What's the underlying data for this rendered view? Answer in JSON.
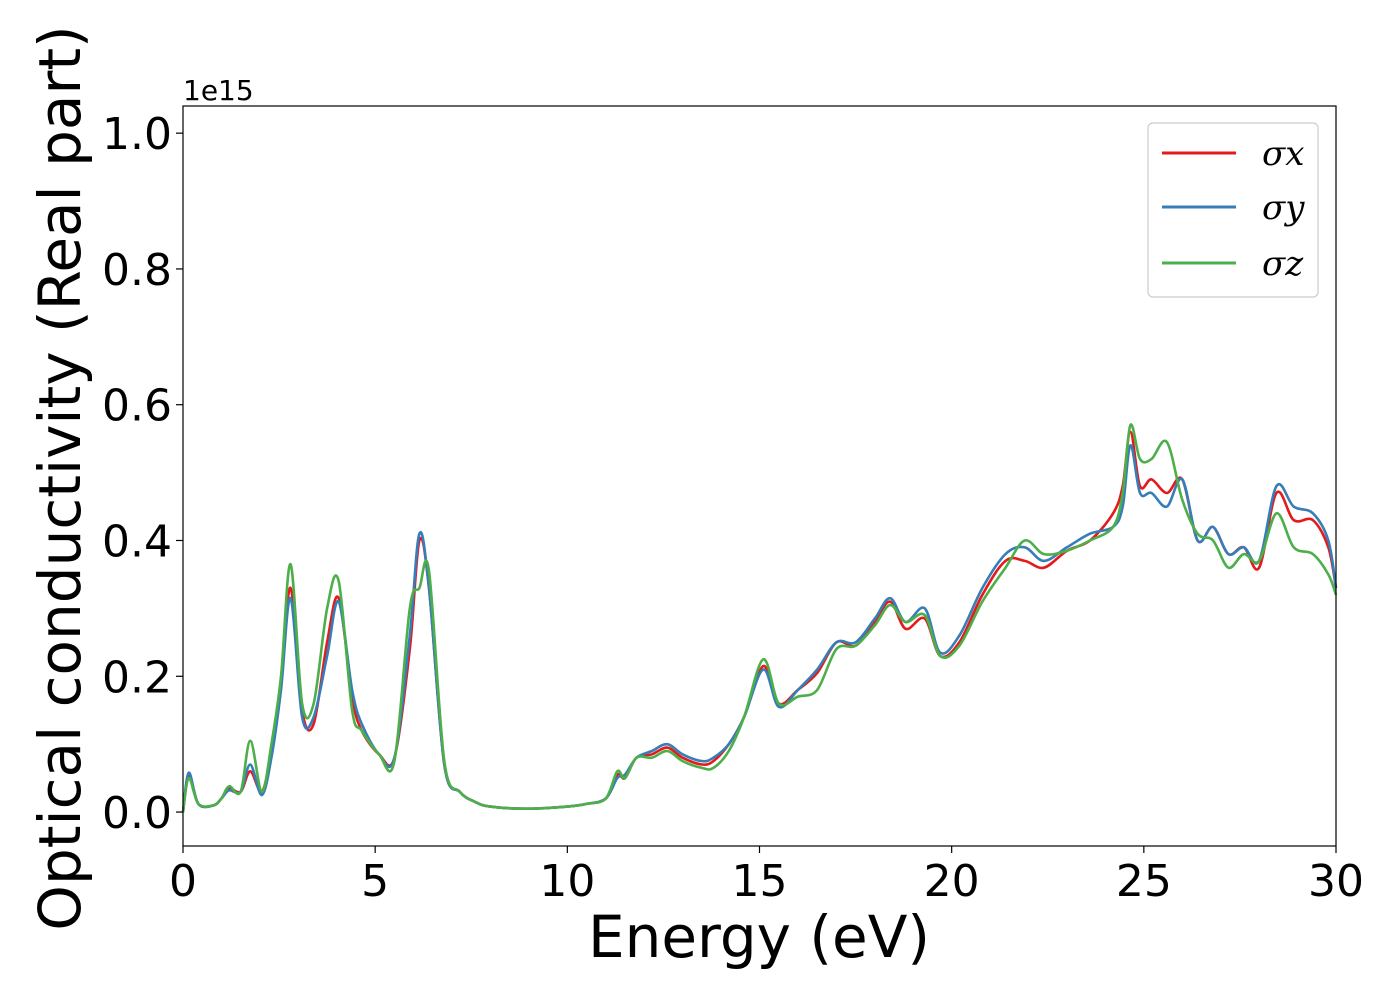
{
  "chart_data": {
    "type": "line",
    "xlabel": "Energy (eV)",
    "ylabel": "Optical conductivity (Real part)",
    "y_offset_label": "1e15",
    "xlim": [
      0,
      30
    ],
    "ylim": [
      -0.05,
      1.04
    ],
    "xticks": [
      0,
      5,
      10,
      15,
      20,
      25,
      30
    ],
    "xtick_labels": [
      "0",
      "5",
      "10",
      "15",
      "20",
      "25",
      "30"
    ],
    "yticks": [
      0.0,
      0.2,
      0.4,
      0.6,
      0.8,
      1.0
    ],
    "ytick_labels": [
      "0.0",
      "0.2",
      "0.4",
      "0.6",
      "0.8",
      "1.0"
    ],
    "grid": false,
    "legend_position": "top-right",
    "series": [
      {
        "name": "σx",
        "color": "#e41a1c",
        "x": [
          0,
          0.15,
          0.4,
          0.8,
          1.0,
          1.2,
          1.5,
          1.75,
          2.05,
          2.3,
          2.55,
          2.8,
          3.1,
          3.4,
          3.75,
          4.05,
          4.4,
          4.65,
          5.1,
          5.5,
          5.9,
          6.15,
          6.4,
          6.8,
          7.2,
          7.6,
          8.0,
          9.0,
          10.0,
          10.5,
          11.0,
          11.3,
          11.5,
          11.8,
          12.2,
          12.6,
          13.0,
          13.5,
          13.8,
          14.2,
          14.6,
          15.1,
          15.5,
          16.0,
          16.5,
          17.0,
          17.5,
          18.0,
          18.4,
          18.8,
          19.3,
          19.7,
          20.2,
          20.8,
          21.4,
          21.9,
          22.4,
          23.0,
          23.6,
          24.2,
          24.45,
          24.65,
          24.9,
          25.2,
          25.6,
          26.0,
          26.4,
          26.8,
          27.2,
          27.6,
          28.0,
          28.45,
          28.9,
          29.4,
          29.8,
          30.0
        ],
        "values": [
          0.0,
          0.055,
          0.012,
          0.01,
          0.02,
          0.035,
          0.03,
          0.06,
          0.03,
          0.09,
          0.19,
          0.33,
          0.15,
          0.13,
          0.25,
          0.315,
          0.17,
          0.12,
          0.085,
          0.08,
          0.24,
          0.4,
          0.33,
          0.07,
          0.03,
          0.015,
          0.008,
          0.005,
          0.008,
          0.012,
          0.02,
          0.055,
          0.05,
          0.08,
          0.085,
          0.095,
          0.08,
          0.07,
          0.075,
          0.1,
          0.14,
          0.215,
          0.16,
          0.18,
          0.205,
          0.25,
          0.245,
          0.28,
          0.31,
          0.27,
          0.285,
          0.23,
          0.25,
          0.32,
          0.37,
          0.37,
          0.36,
          0.385,
          0.4,
          0.44,
          0.48,
          0.56,
          0.48,
          0.49,
          0.47,
          0.49,
          0.4,
          0.42,
          0.38,
          0.39,
          0.36,
          0.47,
          0.43,
          0.43,
          0.39,
          0.33
        ]
      },
      {
        "name": "σy",
        "color": "#377eb8",
        "x": [
          0,
          0.15,
          0.4,
          0.8,
          1.0,
          1.2,
          1.5,
          1.75,
          2.05,
          2.3,
          2.55,
          2.8,
          3.1,
          3.4,
          3.75,
          4.05,
          4.4,
          4.65,
          5.1,
          5.5,
          5.9,
          6.15,
          6.4,
          6.8,
          7.2,
          7.6,
          8.0,
          9.0,
          10.0,
          10.5,
          11.0,
          11.3,
          11.5,
          11.8,
          12.2,
          12.6,
          13.0,
          13.5,
          13.8,
          14.2,
          14.6,
          15.1,
          15.5,
          16.0,
          16.5,
          17.0,
          17.5,
          18.0,
          18.4,
          18.8,
          19.3,
          19.7,
          20.2,
          20.8,
          21.4,
          21.9,
          22.4,
          23.0,
          23.6,
          24.2,
          24.45,
          24.65,
          24.9,
          25.2,
          25.6,
          26.0,
          26.4,
          26.8,
          27.2,
          27.6,
          28.0,
          28.45,
          28.9,
          29.4,
          29.8,
          30.0
        ],
        "values": [
          0.0,
          0.058,
          0.012,
          0.01,
          0.02,
          0.032,
          0.03,
          0.07,
          0.025,
          0.08,
          0.18,
          0.315,
          0.14,
          0.14,
          0.23,
          0.31,
          0.18,
          0.13,
          0.085,
          0.08,
          0.26,
          0.41,
          0.33,
          0.07,
          0.03,
          0.015,
          0.008,
          0.005,
          0.008,
          0.012,
          0.02,
          0.05,
          0.055,
          0.08,
          0.09,
          0.1,
          0.085,
          0.075,
          0.08,
          0.1,
          0.14,
          0.21,
          0.155,
          0.18,
          0.21,
          0.25,
          0.25,
          0.285,
          0.315,
          0.28,
          0.3,
          0.235,
          0.26,
          0.33,
          0.38,
          0.39,
          0.37,
          0.39,
          0.41,
          0.42,
          0.45,
          0.54,
          0.47,
          0.47,
          0.45,
          0.49,
          0.4,
          0.42,
          0.38,
          0.39,
          0.37,
          0.48,
          0.45,
          0.44,
          0.4,
          0.33
        ]
      },
      {
        "name": "σz",
        "color": "#4daf4a",
        "x": [
          0,
          0.15,
          0.4,
          0.8,
          1.0,
          1.2,
          1.5,
          1.75,
          2.05,
          2.3,
          2.55,
          2.8,
          3.1,
          3.4,
          3.75,
          4.05,
          4.4,
          4.65,
          5.1,
          5.5,
          5.9,
          6.15,
          6.4,
          6.8,
          7.2,
          7.6,
          8.0,
          9.0,
          10.0,
          10.5,
          11.0,
          11.3,
          11.5,
          11.8,
          12.2,
          12.6,
          13.0,
          13.5,
          13.8,
          14.2,
          14.6,
          15.1,
          15.5,
          16.0,
          16.5,
          17.0,
          17.5,
          18.0,
          18.4,
          18.8,
          19.3,
          19.7,
          20.2,
          20.8,
          21.4,
          21.9,
          22.4,
          23.0,
          23.6,
          24.2,
          24.45,
          24.65,
          24.9,
          25.2,
          25.6,
          26.0,
          26.4,
          26.8,
          27.2,
          27.6,
          28.0,
          28.45,
          28.9,
          29.4,
          29.8,
          30.0
        ],
        "values": [
          0.0,
          0.05,
          0.012,
          0.01,
          0.02,
          0.038,
          0.03,
          0.105,
          0.03,
          0.1,
          0.2,
          0.365,
          0.16,
          0.16,
          0.3,
          0.34,
          0.15,
          0.12,
          0.085,
          0.075,
          0.3,
          0.33,
          0.355,
          0.075,
          0.03,
          0.015,
          0.008,
          0.005,
          0.008,
          0.012,
          0.02,
          0.06,
          0.05,
          0.08,
          0.08,
          0.09,
          0.075,
          0.065,
          0.065,
          0.09,
          0.14,
          0.225,
          0.16,
          0.17,
          0.18,
          0.24,
          0.245,
          0.275,
          0.305,
          0.28,
          0.29,
          0.23,
          0.245,
          0.31,
          0.36,
          0.4,
          0.38,
          0.385,
          0.4,
          0.42,
          0.47,
          0.57,
          0.52,
          0.52,
          0.545,
          0.46,
          0.41,
          0.4,
          0.36,
          0.38,
          0.37,
          0.44,
          0.39,
          0.38,
          0.35,
          0.32
        ]
      }
    ]
  }
}
